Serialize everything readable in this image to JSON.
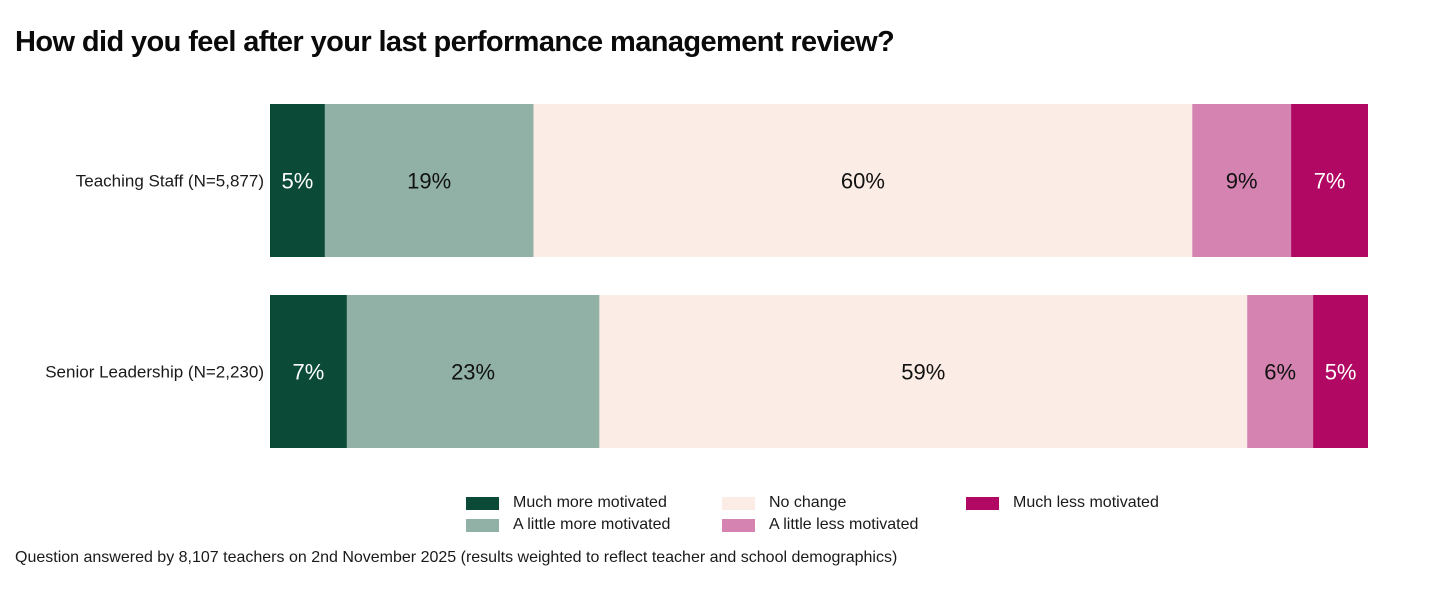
{
  "chart_data": {
    "type": "bar",
    "orientation": "horizontal",
    "stacked": true,
    "title": "How did you feel after your last performance management review?",
    "categories": [
      "Teaching Staff (N=5,877)",
      "Senior Leadership (N=2,230)"
    ],
    "series": [
      {
        "name": "Much more motivated",
        "color": "#0b4a36",
        "label_color": "#ffffff",
        "values": [
          5,
          7
        ],
        "labels": [
          "5%",
          "7%"
        ]
      },
      {
        "name": "A little more motivated",
        "color": "#91b1a6",
        "label_color": "#111111",
        "values": [
          19,
          23
        ],
        "labels": [
          "19%",
          "23%"
        ]
      },
      {
        "name": "No change",
        "color": "#fbece5",
        "label_color": "#111111",
        "values": [
          60,
          59
        ],
        "labels": [
          "60%",
          "59%"
        ]
      },
      {
        "name": "A little less motivated",
        "color": "#d583b0",
        "label_color": "#111111",
        "values": [
          9,
          6
        ],
        "labels": [
          "9%",
          "6%"
        ]
      },
      {
        "name": "Much less motivated",
        "color": "#b10863",
        "label_color": "#ffffff",
        "values": [
          7,
          5
        ],
        "labels": [
          "7%",
          "5%"
        ]
      }
    ],
    "xlim": [
      0,
      100
    ],
    "grid": false,
    "legend_position": "bottom",
    "footnote": "Question answered by 8,107 teachers on 2nd November 2025 (results weighted to reflect teacher and school demographics)"
  }
}
